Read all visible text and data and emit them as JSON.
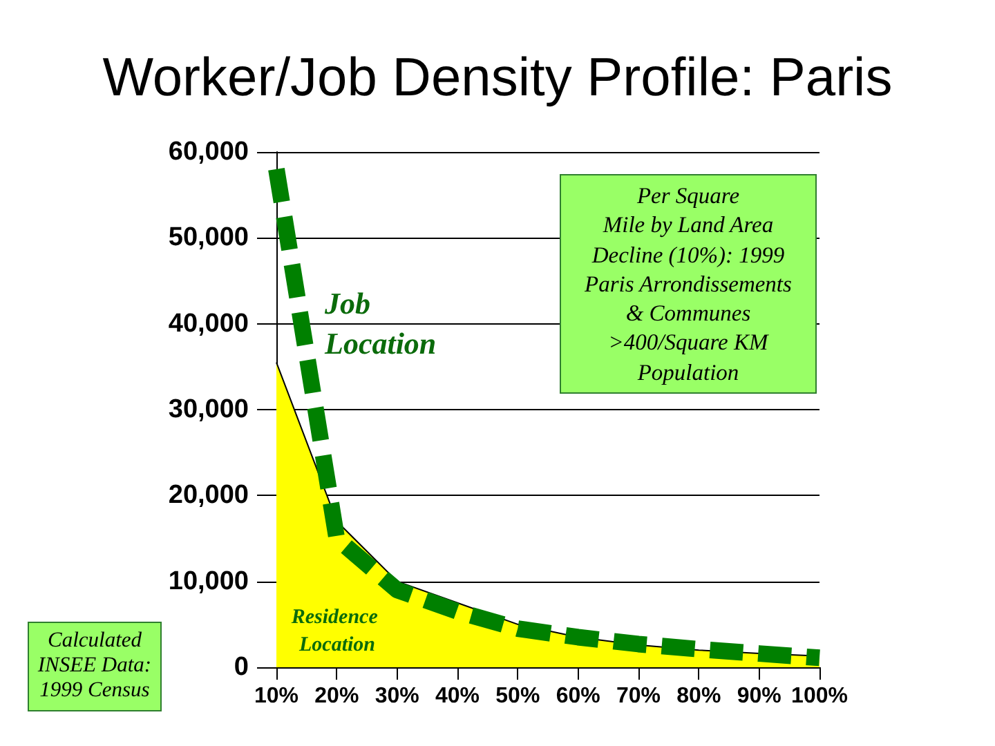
{
  "chart_data": {
    "type": "area",
    "title": "Worker/Job Density Profile: Paris",
    "categories": [
      "10%",
      "20%",
      "30%",
      "40%",
      "50%",
      "60%",
      "70%",
      "80%",
      "90%",
      "100%"
    ],
    "series": [
      {
        "name": "Residence Location",
        "color": "#ffff00",
        "values": [
          35500,
          17000,
          10000,
          7500,
          5000,
          3500,
          2600,
          2000,
          1600,
          1300
        ]
      },
      {
        "name": "Job Location",
        "type": "line",
        "color": "#008000",
        "line_style": "dashed",
        "values": [
          58000,
          15000,
          9000,
          6500,
          4500,
          3500,
          2700,
          2100,
          1600,
          1100
        ]
      }
    ],
    "ylim": [
      0,
      60000
    ],
    "yticks": [
      0,
      {
        "value": 10000,
        "label": "10,000"
      },
      {
        "value": 20000,
        "label": "20,000"
      },
      {
        "value": 30000,
        "label": "30,000"
      },
      {
        "value": 40000,
        "label": "40,000"
      },
      {
        "value": 50000,
        "label": "50,000"
      },
      {
        "value": 60000,
        "label": "60,000"
      }
    ],
    "grid": "y",
    "marker": "none",
    "annotations": [
      "Per Square\nMile by Land Area\nDecline (10%): 1999\nParis Arrondissements\n& Communes\n>400/Square KM\nPopulation",
      "Calculated\nINSEE Data:\n1999 Census"
    ]
  }
}
